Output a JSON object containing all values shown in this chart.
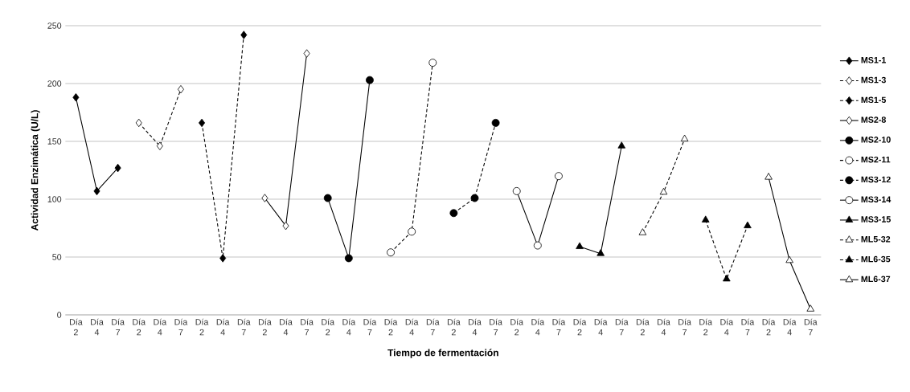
{
  "chart_data": {
    "type": "line",
    "xlabel": "Tiempo de fermentación",
    "ylabel": "Actividad Enzimática (U/L)",
    "categories": [
      "Día 2",
      "Día 4",
      "Día 7",
      "Día 2",
      "Día 4",
      "Día 7",
      "Día 2",
      "Día 4",
      "Día 7",
      "Día 2",
      "Día 4",
      "Día 7",
      "Día 2",
      "Día 4",
      "Día 7",
      "Día 2",
      "Día 4",
      "Día 7",
      "Día 2",
      "Día 4",
      "Día 7",
      "Día 2",
      "Día 4",
      "Día 7",
      "Día 2",
      "Día 4",
      "Día 7",
      "Día 2",
      "Día 4",
      "Día 7",
      "Día 2",
      "Día 4",
      "Día 7",
      "Día 2",
      "Día 4",
      "Día 7"
    ],
    "ylim": [
      0,
      250
    ],
    "yticks": [
      0,
      50,
      100,
      150,
      200,
      250
    ],
    "grid": "y",
    "legend": "right",
    "series": [
      {
        "name": "MS1-1",
        "color": "#000000",
        "marker": "diamond",
        "line_style": "solid",
        "values": [
          188,
          107,
          127,
          null,
          null,
          null,
          null,
          null,
          null,
          null,
          null,
          null,
          null,
          null,
          null,
          null,
          null,
          null,
          null,
          null,
          null,
          null,
          null,
          null,
          null,
          null,
          null,
          null,
          null,
          null,
          null,
          null,
          null,
          null,
          null,
          null
        ]
      },
      {
        "name": "MS1-3",
        "color": "#ffffff",
        "marker": "diamond",
        "line_style": "dashed",
        "values": [
          null,
          null,
          null,
          166,
          146,
          195,
          null,
          null,
          null,
          null,
          null,
          null,
          null,
          null,
          null,
          null,
          null,
          null,
          null,
          null,
          null,
          null,
          null,
          null,
          null,
          null,
          null,
          null,
          null,
          null,
          null,
          null,
          null,
          null,
          null,
          null
        ]
      },
      {
        "name": "MS1-5",
        "color": "#000000",
        "marker": "diamond",
        "line_style": "dashed",
        "values": [
          null,
          null,
          null,
          null,
          null,
          null,
          166,
          49,
          242,
          null,
          null,
          null,
          null,
          null,
          null,
          null,
          null,
          null,
          null,
          null,
          null,
          null,
          null,
          null,
          null,
          null,
          null,
          null,
          null,
          null,
          null,
          null,
          null,
          null,
          null,
          null
        ]
      },
      {
        "name": "MS2-8",
        "color": "#ffffff",
        "marker": "diamond",
        "line_style": "solid",
        "values": [
          null,
          null,
          null,
          null,
          null,
          null,
          null,
          null,
          null,
          101,
          77,
          226,
          null,
          null,
          null,
          null,
          null,
          null,
          null,
          null,
          null,
          null,
          null,
          null,
          null,
          null,
          null,
          null,
          null,
          null,
          null,
          null,
          null,
          null,
          null,
          null
        ]
      },
      {
        "name": "MS2-10",
        "color": "#000000",
        "marker": "circle",
        "line_style": "solid",
        "values": [
          null,
          null,
          null,
          null,
          null,
          null,
          null,
          null,
          null,
          null,
          null,
          null,
          101,
          49,
          203,
          null,
          null,
          null,
          null,
          null,
          null,
          null,
          null,
          null,
          null,
          null,
          null,
          null,
          null,
          null,
          null,
          null,
          null,
          null,
          null,
          null
        ]
      },
      {
        "name": "MS2-11",
        "color": "#ffffff",
        "marker": "circle",
        "line_style": "dashed",
        "values": [
          null,
          null,
          null,
          null,
          null,
          null,
          null,
          null,
          null,
          null,
          null,
          null,
          null,
          null,
          null,
          54,
          72,
          218,
          null,
          null,
          null,
          null,
          null,
          null,
          null,
          null,
          null,
          null,
          null,
          null,
          null,
          null,
          null,
          null,
          null,
          null
        ]
      },
      {
        "name": "MS3-12",
        "color": "#000000",
        "marker": "circle",
        "line_style": "dashed",
        "values": [
          null,
          null,
          null,
          null,
          null,
          null,
          null,
          null,
          null,
          null,
          null,
          null,
          null,
          null,
          null,
          null,
          null,
          null,
          88,
          101,
          166,
          null,
          null,
          null,
          null,
          null,
          null,
          null,
          null,
          null,
          null,
          null,
          null,
          null,
          null,
          null
        ]
      },
      {
        "name": "MS3-14",
        "color": "#ffffff",
        "marker": "circle",
        "line_style": "solid",
        "values": [
          null,
          null,
          null,
          null,
          null,
          null,
          null,
          null,
          null,
          null,
          null,
          null,
          null,
          null,
          null,
          null,
          null,
          null,
          null,
          null,
          null,
          107,
          60,
          120,
          null,
          null,
          null,
          null,
          null,
          null,
          null,
          null,
          null,
          null,
          null,
          null
        ]
      },
      {
        "name": "MS3-15",
        "color": "#000000",
        "marker": "triangle",
        "line_style": "solid",
        "values": [
          null,
          null,
          null,
          null,
          null,
          null,
          null,
          null,
          null,
          null,
          null,
          null,
          null,
          null,
          null,
          null,
          null,
          null,
          null,
          null,
          null,
          null,
          null,
          null,
          59,
          53,
          146,
          null,
          null,
          null,
          null,
          null,
          null,
          null,
          null,
          null
        ]
      },
      {
        "name": "ML5-32",
        "color": "#ffffff",
        "marker": "triangle",
        "line_style": "dashed",
        "values": [
          null,
          null,
          null,
          null,
          null,
          null,
          null,
          null,
          null,
          null,
          null,
          null,
          null,
          null,
          null,
          null,
          null,
          null,
          null,
          null,
          null,
          null,
          null,
          null,
          null,
          null,
          null,
          71,
          106,
          152,
          null,
          null,
          null,
          null,
          null,
          null
        ]
      },
      {
        "name": "ML6-35",
        "color": "#000000",
        "marker": "triangle",
        "line_style": "dashed",
        "values": [
          null,
          null,
          null,
          null,
          null,
          null,
          null,
          null,
          null,
          null,
          null,
          null,
          null,
          null,
          null,
          null,
          null,
          null,
          null,
          null,
          null,
          null,
          null,
          null,
          null,
          null,
          null,
          null,
          null,
          null,
          82,
          31,
          77,
          null,
          null,
          null
        ]
      },
      {
        "name": "ML6-37",
        "color": "#ffffff",
        "marker": "triangle",
        "line_style": "solid",
        "values": [
          null,
          null,
          null,
          null,
          null,
          null,
          null,
          null,
          null,
          null,
          null,
          null,
          null,
          null,
          null,
          null,
          null,
          null,
          null,
          null,
          null,
          null,
          null,
          null,
          null,
          null,
          null,
          null,
          null,
          null,
          null,
          null,
          null,
          119,
          47,
          5
        ]
      }
    ]
  }
}
